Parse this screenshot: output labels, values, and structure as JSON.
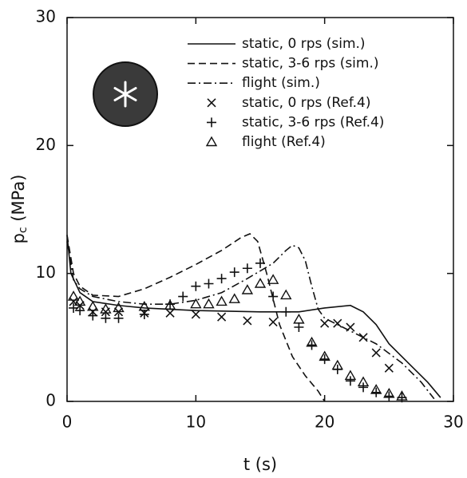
{
  "chart_data": {
    "type": "line",
    "xlabel": "t (s)",
    "ylabel": {
      "symbol": "p",
      "subscript": "c",
      "unit": "(MPa)"
    },
    "xlim": [
      0,
      30
    ],
    "xticks": [
      0,
      10,
      20,
      30
    ],
    "ylim": [
      0,
      30
    ],
    "yticks": [
      0,
      10,
      20,
      30
    ],
    "legend": "upper right",
    "series": [
      {
        "name": "static, 0 rps (sim.)",
        "color": "#111111",
        "style": "solid",
        "marker": "none",
        "x": [
          0,
          0.3,
          1,
          2,
          4,
          6,
          10,
          15,
          18,
          20,
          22,
          23,
          24,
          25,
          26.5,
          28,
          29
        ],
        "values": [
          13,
          10,
          8.5,
          7.8,
          7.5,
          7.3,
          7.1,
          7,
          7,
          7.3,
          7.5,
          7,
          6,
          4.5,
          3,
          1.5,
          0.3
        ]
      },
      {
        "name": "static, 3-6 rps (sim.)",
        "color": "#111111",
        "style": "dashed",
        "marker": "none",
        "x": [
          0,
          0.5,
          1,
          2,
          4,
          6,
          8,
          10,
          12,
          13.5,
          14.2,
          14.8,
          15.5,
          16.5,
          17.5,
          18.5,
          19.5,
          20
        ],
        "values": [
          13,
          10,
          9,
          8.3,
          8.2,
          8.8,
          9.7,
          10.7,
          11.8,
          12.8,
          13.1,
          12.5,
          10,
          6,
          3.5,
          2,
          0.8,
          0
        ]
      },
      {
        "name": "flight (sim.)",
        "color": "#111111",
        "style": "dashdot",
        "marker": "none",
        "x": [
          0,
          0.5,
          1,
          2,
          4,
          6,
          8,
          10,
          12,
          14,
          16,
          17,
          17.5,
          18,
          18.5,
          19,
          19.5,
          20,
          22,
          24,
          26,
          27.5,
          28.5
        ],
        "values": [
          12.5,
          9.5,
          8.8,
          8.2,
          7.8,
          7.6,
          7.6,
          7.9,
          8.5,
          9.6,
          10.8,
          11.8,
          12.2,
          12,
          11,
          9,
          7.2,
          6.5,
          5.5,
          4.5,
          3,
          1.5,
          0.2
        ]
      },
      {
        "name": "static, 0 rps (Ref.4)",
        "color": "#111111",
        "style": "none",
        "marker": "x",
        "x": [
          0.5,
          1,
          2,
          3,
          4,
          6,
          8,
          10,
          12,
          14,
          16,
          20,
          21,
          22,
          23,
          24,
          25
        ],
        "values": [
          7.8,
          7.5,
          7,
          7,
          7,
          6.9,
          6.9,
          6.8,
          6.6,
          6.3,
          6.2,
          6.1,
          6.1,
          5.8,
          5,
          3.8,
          2.6
        ]
      },
      {
        "name": "static, 3-6 rps (Ref.4)",
        "color": "#111111",
        "style": "none",
        "marker": "plus",
        "x": [
          0.5,
          1,
          2,
          3,
          4,
          6,
          8,
          9,
          10,
          11,
          12,
          13,
          14,
          15,
          16,
          17,
          18,
          19,
          20,
          21,
          22,
          23,
          24,
          25,
          26
        ],
        "values": [
          7.3,
          7.1,
          6.7,
          6.5,
          6.5,
          6.8,
          7.6,
          8.2,
          9,
          9.2,
          9.6,
          10.1,
          10.4,
          10.8,
          8.2,
          7,
          5.8,
          4.4,
          3.3,
          2.5,
          1.6,
          1.1,
          0.7,
          0.4,
          0.3
        ]
      },
      {
        "name": "flight (Ref.4)",
        "color": "#111111",
        "style": "none",
        "marker": "triangle",
        "x": [
          0.5,
          1,
          2,
          3,
          4,
          6,
          8,
          10,
          11,
          12,
          13,
          14,
          15,
          16,
          17,
          18,
          19,
          20,
          21,
          22,
          23,
          24,
          25,
          26
        ],
        "values": [
          8.2,
          7.8,
          7.4,
          7.2,
          7.3,
          7.4,
          7.5,
          7.6,
          7.6,
          7.8,
          8,
          8.7,
          9.2,
          9.5,
          8.3,
          6.4,
          4.6,
          3.5,
          2.8,
          2,
          1.5,
          0.9,
          0.6,
          0.4
        ]
      }
    ]
  }
}
